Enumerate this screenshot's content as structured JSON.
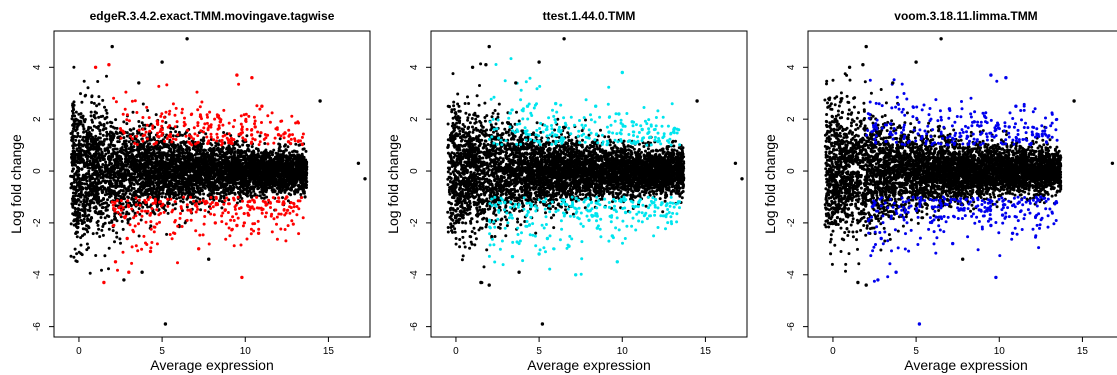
{
  "chart_data": [
    {
      "type": "scatter",
      "title": "edgeR.3.4.2.exact.TMM.movingave.tagwise",
      "xlabel": "Average expression",
      "ylabel": "Log fold change",
      "xlim": [
        -1.5,
        17.5
      ],
      "ylim": [
        -6.4,
        5.4
      ],
      "xticks": [
        "0",
        "5",
        "10",
        "15"
      ],
      "yticks": [
        "-6",
        "-4",
        "-2",
        "0",
        "2",
        "4"
      ],
      "grid": false,
      "highlight_color": "#ff0000",
      "base_color": "#000000",
      "series": [
        {
          "points": [
            [
              6.5,
              5.1
            ],
            [
              2.0,
              4.8
            ],
            [
              5.0,
              4.2
            ],
            [
              3.6,
              3.4
            ],
            [
              14.5,
              2.7
            ],
            [
              16.8,
              0.3
            ],
            [
              17.2,
              -0.3
            ],
            [
              5.2,
              -5.9
            ],
            [
              3.8,
              -3.9
            ],
            [
              7.8,
              -3.4
            ],
            [
              2.7,
              -4.2
            ],
            [
              1.0,
              0.0
            ],
            [
              4.0,
              0.5
            ],
            [
              8.0,
              -0.5
            ],
            [
              11.0,
              0.2
            ],
            [
              13.0,
              -0.1
            ]
          ]
        },
        {
          "points": [
            [
              1.0,
              4.0
            ],
            [
              1.8,
              4.1
            ],
            [
              2.2,
              -3.5
            ],
            [
              1.5,
              -4.3
            ],
            [
              3.0,
              -3.9
            ],
            [
              9.5,
              3.7
            ],
            [
              10.4,
              3.6
            ],
            [
              11.0,
              2.5
            ],
            [
              8.5,
              1.9
            ],
            [
              9.8,
              1.6
            ],
            [
              10.6,
              1.7
            ],
            [
              12.0,
              1.4
            ],
            [
              10.0,
              1.2
            ],
            [
              8.8,
              -1.5
            ],
            [
              10.2,
              -1.7
            ],
            [
              9.5,
              -2.1
            ],
            [
              10.8,
              -2.4
            ],
            [
              8.2,
              -2.0
            ],
            [
              11.2,
              -1.2
            ],
            [
              12.5,
              -1.0
            ],
            [
              7.2,
              -3.0
            ],
            [
              9.8,
              -4.1
            ],
            [
              4.3,
              -3.1
            ],
            [
              2.9,
              -2.6
            ]
          ]
        }
      ]
    },
    {
      "type": "scatter",
      "title": "ttest.1.44.0.TMM",
      "xlabel": "Average expression",
      "ylabel": "Log fold change",
      "xlim": [
        -1.5,
        17.5
      ],
      "ylim": [
        -6.4,
        5.4
      ],
      "xticks": [
        "0",
        "5",
        "10",
        "15"
      ],
      "yticks": [
        "-6",
        "-4",
        "-2",
        "0",
        "2",
        "4"
      ],
      "grid": false,
      "highlight_color": "#00e5ee",
      "base_color": "#000000",
      "series": [
        {
          "points": [
            [
              6.5,
              5.1
            ],
            [
              2.0,
              4.8
            ],
            [
              5.0,
              4.2
            ],
            [
              3.6,
              3.4
            ],
            [
              14.5,
              2.7
            ],
            [
              16.8,
              0.3
            ],
            [
              17.2,
              -0.3
            ],
            [
              5.2,
              -5.9
            ],
            [
              3.8,
              -3.9
            ],
            [
              2.0,
              -4.4
            ],
            [
              1.0,
              4.0
            ],
            [
              1.8,
              4.1
            ],
            [
              1.5,
              -4.3
            ]
          ]
        },
        {
          "points": [
            [
              10.0,
              3.8
            ],
            [
              6.0,
              2.6
            ],
            [
              8.4,
              2.5
            ],
            [
              9.8,
              2.2
            ],
            [
              10.6,
              1.9
            ],
            [
              11.2,
              1.6
            ],
            [
              9.2,
              1.5
            ],
            [
              4.3,
              2.5
            ],
            [
              5.5,
              -2.6
            ],
            [
              6.8,
              -2.9
            ],
            [
              7.2,
              -4.0
            ],
            [
              8.5,
              -2.2
            ],
            [
              9.4,
              -2.5
            ],
            [
              10.2,
              -1.6
            ],
            [
              11.0,
              -1.2
            ],
            [
              9.7,
              -3.5
            ],
            [
              8.0,
              -1.9
            ],
            [
              12.0,
              -1.1
            ],
            [
              5.0,
              -3.2
            ],
            [
              3.4,
              -3.3
            ]
          ]
        }
      ]
    },
    {
      "type": "scatter",
      "title": "voom.3.18.11.limma.TMM",
      "xlabel": "Average expression",
      "ylabel": "Log fold change",
      "xlim": [
        -1.5,
        17.5
      ],
      "ylim": [
        -6.4,
        5.4
      ],
      "xticks": [
        "0",
        "5",
        "10",
        "15"
      ],
      "yticks": [
        "-6",
        "-4",
        "-2",
        "0",
        "2",
        "4"
      ],
      "grid": false,
      "highlight_color": "#0000ee",
      "base_color": "#000000",
      "series": [
        {
          "points": [
            [
              6.5,
              5.1
            ],
            [
              2.0,
              4.8
            ],
            [
              5.0,
              4.2
            ],
            [
              3.6,
              3.4
            ],
            [
              14.5,
              2.7
            ],
            [
              16.8,
              0.3
            ],
            [
              17.2,
              -0.3
            ],
            [
              1.0,
              4.0
            ],
            [
              1.8,
              4.1
            ],
            [
              1.5,
              -4.3
            ],
            [
              2.0,
              -4.4
            ],
            [
              7.8,
              -3.4
            ]
          ]
        },
        {
          "points": [
            [
              9.5,
              3.7
            ],
            [
              10.4,
              3.6
            ],
            [
              11.0,
              2.5
            ],
            [
              8.5,
              1.9
            ],
            [
              9.8,
              1.6
            ],
            [
              10.6,
              1.7
            ],
            [
              12.0,
              1.4
            ],
            [
              7.0,
              2.4
            ],
            [
              8.8,
              -1.5
            ],
            [
              10.2,
              -1.7
            ],
            [
              9.5,
              -2.1
            ],
            [
              10.8,
              -2.4
            ],
            [
              7.2,
              -2.8
            ],
            [
              9.8,
              -4.1
            ],
            [
              5.2,
              -5.9
            ],
            [
              3.8,
              -3.9
            ],
            [
              2.7,
              -4.2
            ],
            [
              2.9,
              -2.6
            ],
            [
              12.5,
              -1.0
            ],
            [
              11.2,
              -1.2
            ]
          ]
        }
      ]
    }
  ]
}
